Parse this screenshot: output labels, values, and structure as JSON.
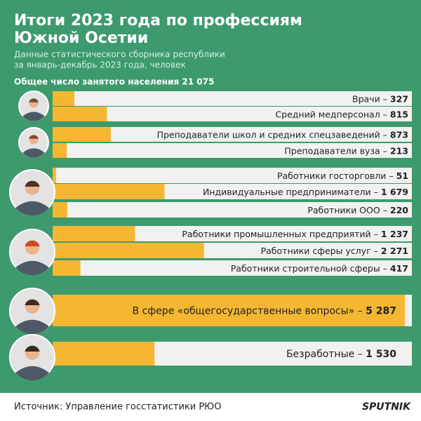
{
  "chart_data": {
    "type": "hbar",
    "title": [
      "Итоги 2023 года по профессиям",
      "Южной Осетии"
    ],
    "subtitle": [
      "Данные статистического сборника республики",
      "за январь-декабрь 2023 года, человек"
    ],
    "total": "Общее число занятого населения 21 075",
    "separator": " – ",
    "categories": [
      "Врачи",
      "Средний медперсонал",
      "Преподаватели школ и средних спецзаведений",
      "Преподаватели вуза",
      "Работники госторговли",
      "Индивидуальные предприниматели",
      "Работники ООО",
      "Работники промышленных предприятий",
      "Работники сферы услуг",
      "Работники строительной сферы",
      "В сфере «общегосударственные вопросы»",
      "Безработные"
    ],
    "values": [
      327,
      815,
      873,
      213,
      51,
      1679,
      220,
      1237,
      2271,
      417,
      5287,
      1530
    ],
    "value_labels": [
      "327",
      "815",
      "873",
      "213",
      "51",
      "1 679",
      "220",
      "1 237",
      "2 271",
      "417",
      "5 287",
      "1 530"
    ],
    "color": "#f5b731",
    "source": "Источник: Управление госстатистики РЮО",
    "logo": "SPUTNIK"
  }
}
